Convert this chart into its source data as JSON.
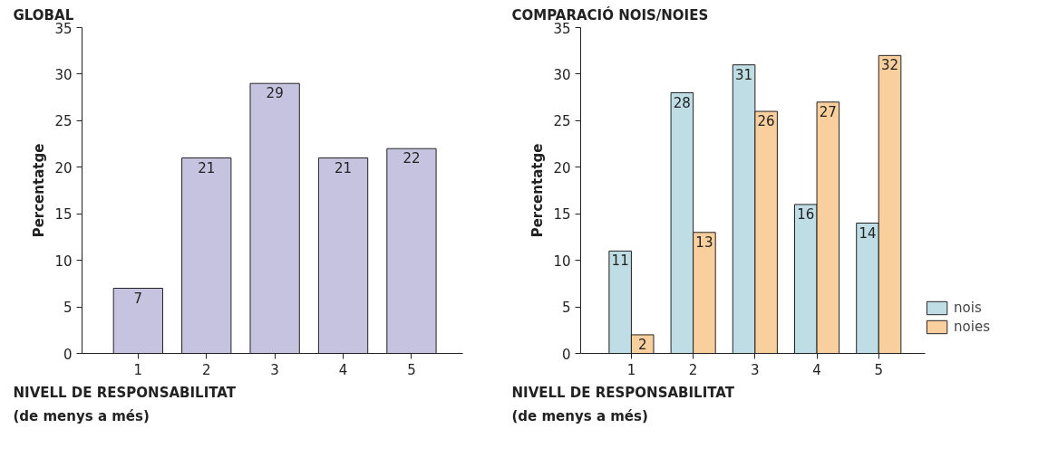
{
  "chart_data": [
    {
      "type": "bar",
      "title": "GLOBAL",
      "xlabel": "NIVELL DE RESPONSABILITAT\n(de menys a més)",
      "ylabel": "Percentatge",
      "categories": [
        "1",
        "2",
        "3",
        "4",
        "5"
      ],
      "values": [
        7,
        21,
        29,
        21,
        22
      ],
      "color": "#c6c3e1",
      "ylim": [
        0,
        35
      ],
      "yticks": [
        0,
        5,
        10,
        15,
        20,
        25,
        30,
        35
      ],
      "grid": false,
      "data_labels": true
    },
    {
      "type": "bar",
      "title": "COMPARACIÓ NOIS/NOIES",
      "xlabel": "NIVELL DE RESPONSABILITAT\n(de menys a més)",
      "ylabel": "Percentatge",
      "categories": [
        "1",
        "2",
        "3",
        "4",
        "5"
      ],
      "series": [
        {
          "name": "nois",
          "color": "#bedde4",
          "values": [
            11,
            28,
            31,
            16,
            14
          ]
        },
        {
          "name": "noies",
          "color": "#f8cf9d",
          "values": [
            2,
            13,
            26,
            27,
            32
          ]
        }
      ],
      "ylim": [
        0,
        35
      ],
      "yticks": [
        0,
        5,
        10,
        15,
        20,
        25,
        30,
        35
      ],
      "grid": false,
      "data_labels": true,
      "legend": "bottom right"
    }
  ]
}
